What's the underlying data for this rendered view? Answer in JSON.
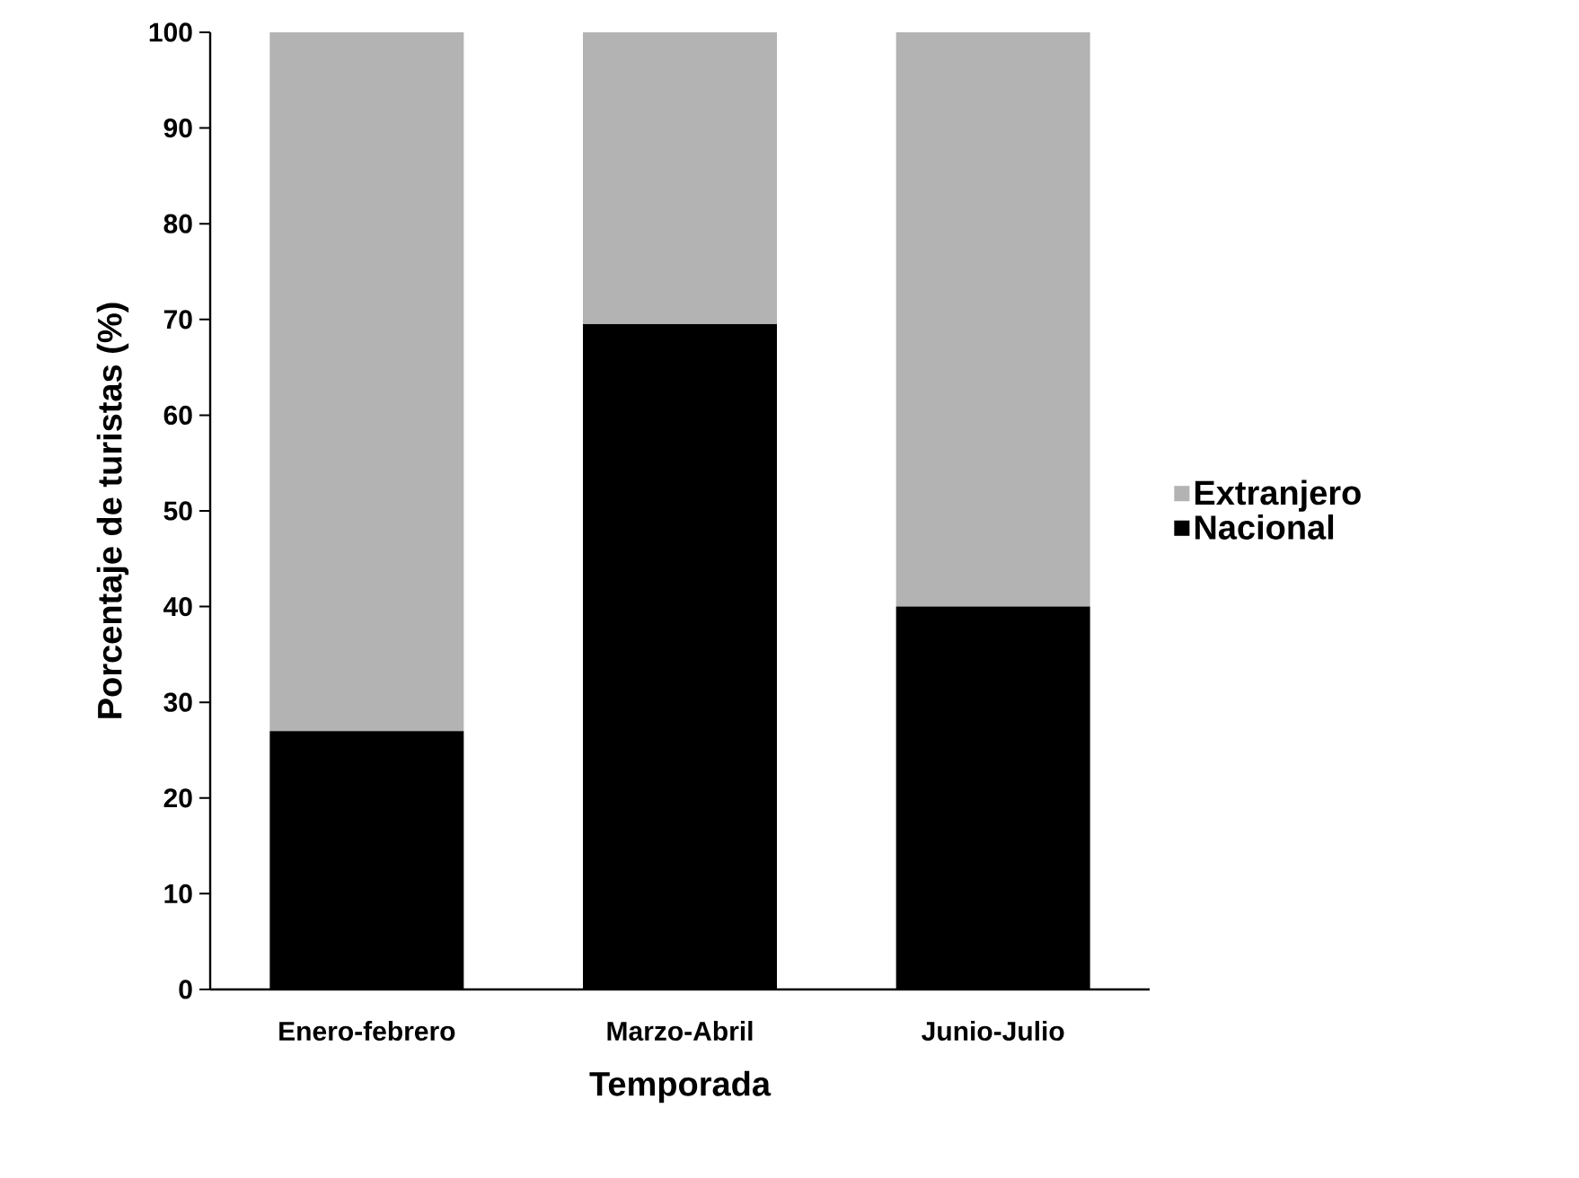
{
  "chart_data": {
    "type": "bar",
    "stacked": true,
    "xlabel": "Temporada",
    "ylabel": "Porcentaje de turistas (%)",
    "categories": [
      "Enero-febrero",
      "Marzo-Abril",
      "Junio-Julio"
    ],
    "series": [
      {
        "name": "Nacional",
        "color": "#000000",
        "values": [
          27,
          69.5,
          40
        ]
      },
      {
        "name": "Extranjero",
        "color": "#b3b3b3",
        "values": [
          73,
          30.5,
          60
        ]
      }
    ],
    "ylim": [
      0,
      100
    ],
    "yticks": [
      0,
      10,
      20,
      30,
      40,
      50,
      60,
      70,
      80,
      90,
      100
    ],
    "legend": "right",
    "grid": false
  }
}
